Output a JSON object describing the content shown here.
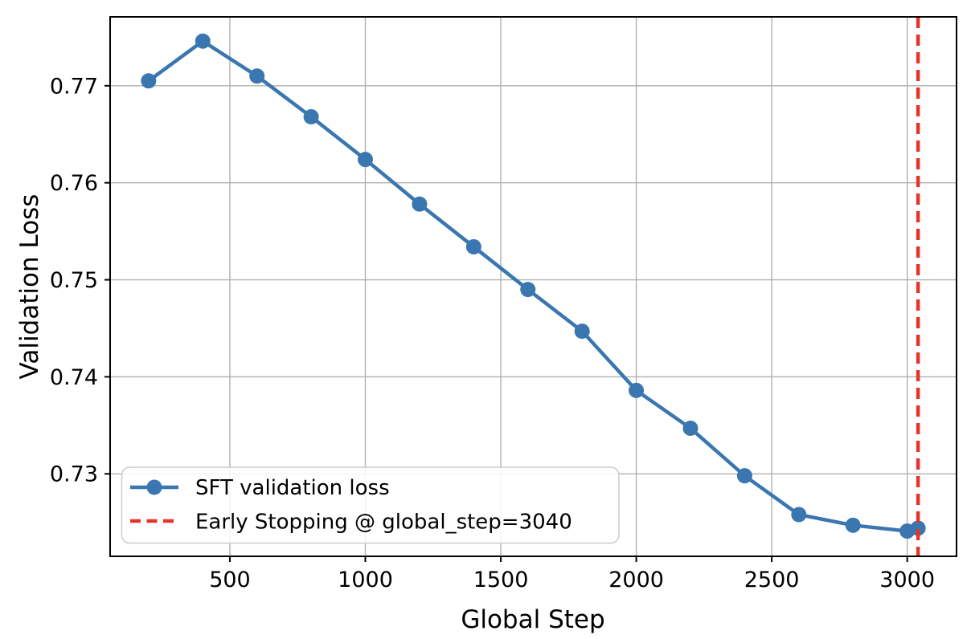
{
  "chart_data": {
    "type": "line",
    "xlabel": "Global Step",
    "ylabel": "Validation Loss",
    "xlim": [
      58,
      3182
    ],
    "ylim": [
      0.7215,
      0.7771
    ],
    "x_ticks": [
      500,
      1000,
      1500,
      2000,
      2500,
      3000
    ],
    "y_ticks": [
      0.73,
      0.74,
      0.75,
      0.76,
      0.77
    ],
    "grid": true,
    "grid_color": "#b0b0b0",
    "legend_position": "lower left",
    "series": [
      {
        "name": "SFT validation loss",
        "color": "#3a76af",
        "marker": "o",
        "x": [
          200,
          400,
          600,
          800,
          1000,
          1200,
          1400,
          1600,
          1800,
          2000,
          2200,
          2400,
          2600,
          2800,
          3000,
          3040
        ],
        "y": [
          0.7705,
          0.7746,
          0.771,
          0.7668,
          0.7624,
          0.7578,
          0.7534,
          0.749,
          0.7447,
          0.7386,
          0.7347,
          0.7298,
          0.7258,
          0.7247,
          0.7241,
          0.7244
        ]
      }
    ],
    "early_stopping": {
      "label": "Early Stopping @ global_step=3040",
      "step": 3040,
      "color": "#e5352b",
      "style": "dashed"
    }
  }
}
